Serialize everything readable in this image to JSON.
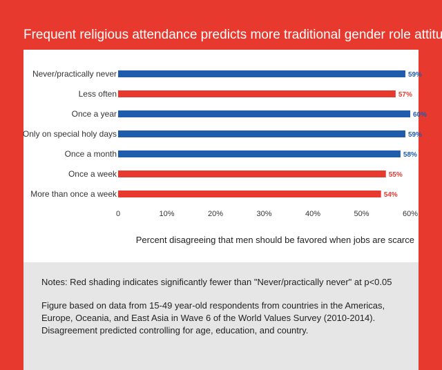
{
  "title": "Frequent religious attendance predicts more traditional gender role attitudes",
  "colors": {
    "frame": "#e8392f",
    "significant": "#e8392f",
    "not_significant": "#1f5cab",
    "notes_background": "#e6e6e7"
  },
  "chart_data": {
    "type": "bar",
    "orientation": "horizontal",
    "categories": [
      "Never/practically never",
      "Less often",
      "Once a year",
      "Only on special holy days",
      "Once a month",
      "Once a week",
      "More than once a week"
    ],
    "values": [
      59,
      57,
      60,
      59,
      58,
      55,
      54
    ],
    "value_labels": [
      "59%",
      "57%",
      "60%",
      "59%",
      "58%",
      "55%",
      "54%"
    ],
    "significantly_fewer": [
      false,
      true,
      false,
      false,
      false,
      true,
      true
    ],
    "xlabel": "Percent disagreeing that men should be favored when jobs are scarce",
    "xlim": [
      0,
      60
    ],
    "xticks": [
      0,
      10,
      20,
      30,
      40,
      50,
      60
    ],
    "xtick_labels": [
      "0",
      "10%",
      "20%",
      "30%",
      "40%",
      "50%",
      "60%"
    ],
    "grid": false
  },
  "notes": {
    "note1": "Notes: Red shading indicates significantly fewer than \"Never/practically never\" at p<0.05",
    "note2": "Figure based on data from 15-49 year-old respondents from countries in the Americas, Europe, Oceania, and East Asia in Wave 6 of the World Values Survey (2010-2014). Disagreement predicted controlling for age, education, and country."
  }
}
